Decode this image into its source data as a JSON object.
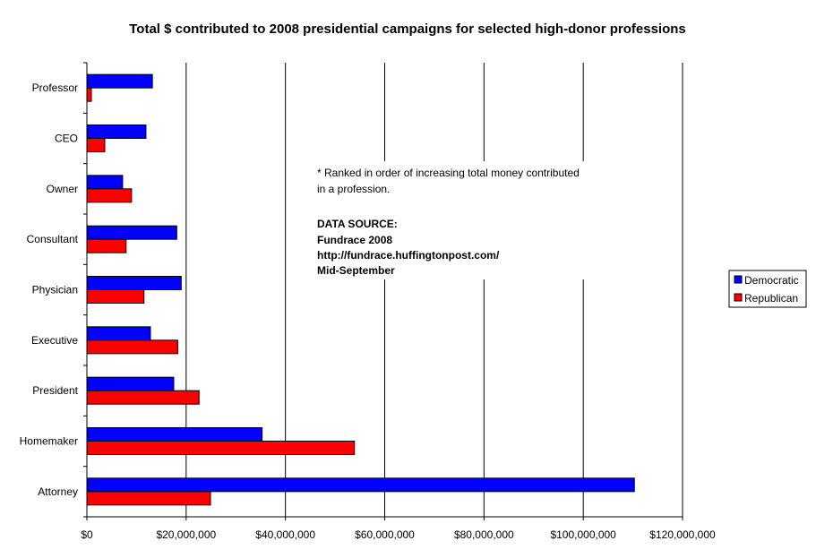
{
  "chart_data": {
    "type": "bar",
    "orientation": "horizontal",
    "title": "Total $ contributed to 2008 presidential campaigns for selected high-donor professions",
    "categories": [
      "Professor",
      "CEO",
      "Owner",
      "Consultant",
      "Physician",
      "Executive",
      "President",
      "Homemaker",
      "Attorney"
    ],
    "series": [
      {
        "name": "Democratic",
        "color": "#0000ff",
        "values": [
          13200000,
          11900000,
          7200000,
          18100000,
          19000000,
          12800000,
          17500000,
          35300000,
          110300000
        ]
      },
      {
        "name": "Republican",
        "color": "#ff0000",
        "values": [
          900000,
          3600000,
          9000000,
          7900000,
          11500000,
          18300000,
          22600000,
          53900000,
          24900000
        ]
      }
    ],
    "xlim": [
      0,
      120000000
    ],
    "xticks": [
      0,
      20000000,
      40000000,
      60000000,
      80000000,
      100000000,
      120000000
    ],
    "xtick_labels": [
      "$0",
      "$20,000,000",
      "$40,000,000",
      "$60,000,000",
      "$80,000,000",
      "$100,000,000",
      "$120,000,000"
    ],
    "grid": "vertical major gridlines",
    "legend_position": "right",
    "annotation": {
      "note_lines": [
        "* Ranked in order of increasing total money contributed",
        "in a profession."
      ],
      "source_lines": [
        "DATA SOURCE:",
        "Fundrace 2008",
        "http://fundrace.huffingtonpost.com/",
        "Mid-September"
      ]
    }
  }
}
